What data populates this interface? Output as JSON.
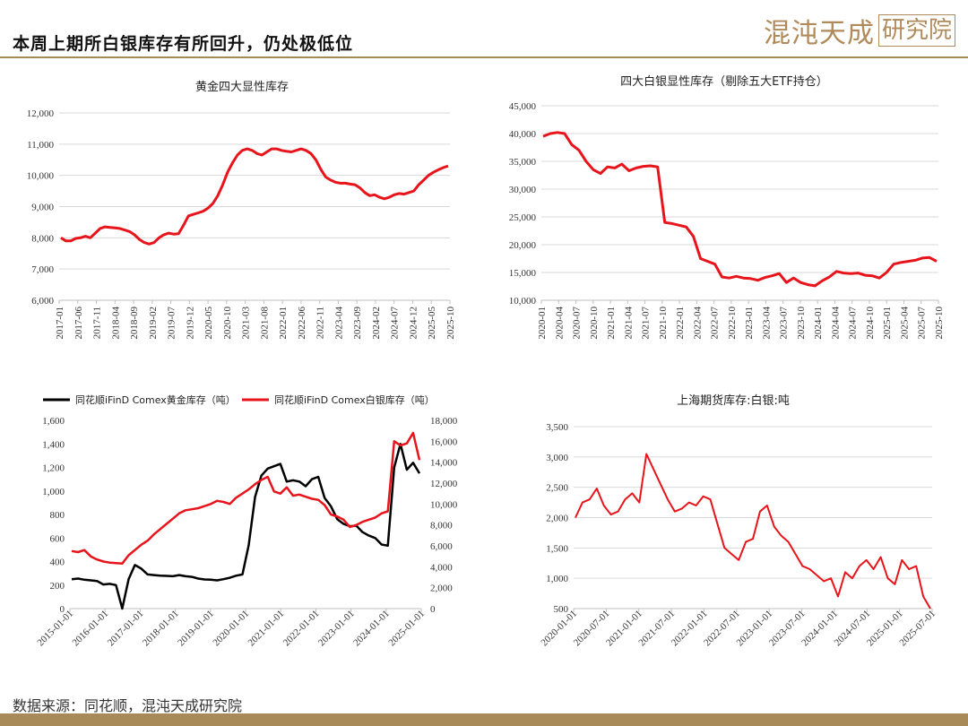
{
  "page": {
    "title": "本周上期所白银库存有所回升，仍处极低位",
    "brand_text": "混沌天成",
    "brand_box": "研究院",
    "source": "数据来源：同花顺，混沌天成研究院"
  },
  "colors": {
    "red": "#e8141b",
    "black": "#000000",
    "gold": "#a88958",
    "grid": "#d9d9d9"
  },
  "chart_data": [
    {
      "type": "line",
      "title": "黄金四大显性库存",
      "ylim": [
        6000,
        12000
      ],
      "yticks": [
        "6,000",
        "7,000",
        "8,000",
        "9,000",
        "10,000",
        "11,000",
        "12,000"
      ],
      "xticks": [
        "2017-01",
        "2017-06",
        "2017-11",
        "2018-04",
        "2018-09",
        "2019-02",
        "2019-07",
        "2019-12",
        "2020-05",
        "2020-10",
        "2021-03",
        "2021-08",
        "2022-01",
        "2022-06",
        "2022-11",
        "2023-04",
        "2023-09",
        "2024-02",
        "2024-07",
        "2024-12",
        "2025-05",
        "2025-10"
      ],
      "series": [
        {
          "color": "#e8141b",
          "values": [
            8000,
            7900,
            7900,
            7980,
            8000,
            8050,
            8000,
            8150,
            8300,
            8350,
            8330,
            8320,
            8300,
            8250,
            8200,
            8100,
            7950,
            7850,
            7800,
            7850,
            8000,
            8100,
            8150,
            8120,
            8130,
            8400,
            8700,
            8750,
            8800,
            8850,
            8950,
            9100,
            9350,
            9700,
            10100,
            10400,
            10650,
            10800,
            10850,
            10800,
            10700,
            10650,
            10750,
            10850,
            10850,
            10800,
            10770,
            10750,
            10800,
            10850,
            10800,
            10700,
            10500,
            10200,
            9950,
            9850,
            9780,
            9750,
            9750,
            9720,
            9700,
            9600,
            9450,
            9350,
            9380,
            9300,
            9250,
            9300,
            9380,
            9420,
            9400,
            9450,
            9500,
            9700,
            9850,
            10000,
            10100,
            10180,
            10250,
            10300
          ]
        }
      ]
    },
    {
      "type": "line",
      "title": "四大白银显性库存（剔除五大ETF持仓）",
      "ylim": [
        10000,
        45000
      ],
      "yticks": [
        "10,000",
        "15,000",
        "20,000",
        "25,000",
        "30,000",
        "35,000",
        "40,000",
        "45,000"
      ],
      "xticks": [
        "2020-01",
        "2020-04",
        "2020-07",
        "2020-10",
        "2021-01",
        "2021-04",
        "2021-07",
        "2021-10",
        "2022-01",
        "2022-04",
        "2022-07",
        "2022-10",
        "2023-01",
        "2023-04",
        "2023-07",
        "2023-10",
        "2024-01",
        "2024-04",
        "2024-07",
        "2024-10",
        "2025-01",
        "2025-04",
        "2025-07",
        "2025-10"
      ],
      "series": [
        {
          "color": "#e8141b",
          "values": [
            39500,
            40000,
            40200,
            40000,
            38000,
            37000,
            35000,
            33500,
            32800,
            34000,
            33800,
            34500,
            33300,
            33800,
            34100,
            34200,
            34000,
            24000,
            23800,
            23500,
            23200,
            21500,
            17500,
            17000,
            16500,
            14200,
            14000,
            14300,
            14000,
            13900,
            13600,
            14100,
            14400,
            14800,
            13200,
            14000,
            13200,
            12800,
            12600,
            13500,
            14200,
            15200,
            14900,
            14800,
            14900,
            14500,
            14400,
            14000,
            15000,
            16500,
            16800,
            17000,
            17200,
            17600,
            17700,
            17000
          ]
        }
      ]
    },
    {
      "type": "line",
      "title": "",
      "ylim": [
        0,
        1600
      ],
      "ylim_right": [
        0,
        18000
      ],
      "yticks": [
        "0",
        "200",
        "400",
        "600",
        "800",
        "1,000",
        "1,200",
        "1,400",
        "1,600"
      ],
      "yticks_right": [
        "0",
        "2,000",
        "4,000",
        "6,000",
        "8,000",
        "10,000",
        "12,000",
        "14,000",
        "16,000",
        "18,000"
      ],
      "xticks": [
        "2015-01-01",
        "2016-01-01",
        "2017-01-01",
        "2018-01-01",
        "2019-01-01",
        "2020-01-01",
        "2021-01-01",
        "2022-01-01",
        "2023-01-01",
        "2024-01-01",
        "2025-01-01"
      ],
      "series": [
        {
          "name": "同花顺iFinD Comex黄金库存（吨）",
          "axis": "left",
          "color": "#000000",
          "values": [
            250,
            255,
            245,
            240,
            235,
            205,
            210,
            200,
            0,
            250,
            370,
            340,
            290,
            285,
            280,
            278,
            275,
            285,
            275,
            270,
            255,
            248,
            245,
            240,
            250,
            262,
            280,
            290,
            540,
            950,
            1130,
            1190,
            1210,
            1230,
            1080,
            1090,
            1080,
            1040,
            1100,
            1120,
            940,
            870,
            760,
            720,
            700,
            705,
            650,
            620,
            600,
            545,
            535,
            1200,
            1400,
            1180,
            1240,
            1150
          ]
        },
        {
          "name": "同花顺iFinD Comex白银库存（吨）",
          "axis": "right",
          "color": "#e8141b",
          "values": [
            5500,
            5400,
            5600,
            5000,
            4700,
            4500,
            4400,
            4350,
            4300,
            5100,
            5600,
            6100,
            6500,
            7100,
            7600,
            8100,
            8600,
            9100,
            9400,
            9500,
            9600,
            9800,
            10000,
            10300,
            10200,
            10000,
            10600,
            11000,
            11400,
            11900,
            12300,
            12600,
            11200,
            11000,
            11600,
            10800,
            10900,
            10700,
            10500,
            10400,
            9900,
            9000,
            8800,
            8500,
            7800,
            8000,
            8300,
            8500,
            8700,
            9100,
            9300,
            16000,
            15600,
            15800,
            16800,
            14200
          ]
        }
      ]
    },
    {
      "type": "line",
      "title": "上海期货库存:白银:吨",
      "ylim": [
        500,
        3500
      ],
      "yticks": [
        "500",
        "1,000",
        "1,500",
        "2,000",
        "2,500",
        "3,000",
        "3,500"
      ],
      "xticks": [
        "2020-01-01",
        "2020-07-01",
        "2021-01-01",
        "2021-07-01",
        "2022-01-01",
        "2022-07-01",
        "2023-01-01",
        "2023-07-01",
        "2024-01-01",
        "2024-07-01",
        "2025-01-01",
        "2025-07-01"
      ],
      "series": [
        {
          "color": "#e8141b",
          "values": [
            2000,
            2250,
            2300,
            2480,
            2200,
            2050,
            2100,
            2300,
            2400,
            2250,
            3050,
            2800,
            2550,
            2300,
            2100,
            2150,
            2250,
            2200,
            2350,
            2300,
            1900,
            1500,
            1400,
            1300,
            1600,
            1650,
            2100,
            2200,
            1850,
            1700,
            1600,
            1400,
            1200,
            1150,
            1050,
            950,
            1000,
            700,
            1100,
            1000,
            1200,
            1300,
            1150,
            1350,
            1000,
            900,
            1300,
            1150,
            1200,
            700,
            500
          ]
        }
      ]
    }
  ]
}
